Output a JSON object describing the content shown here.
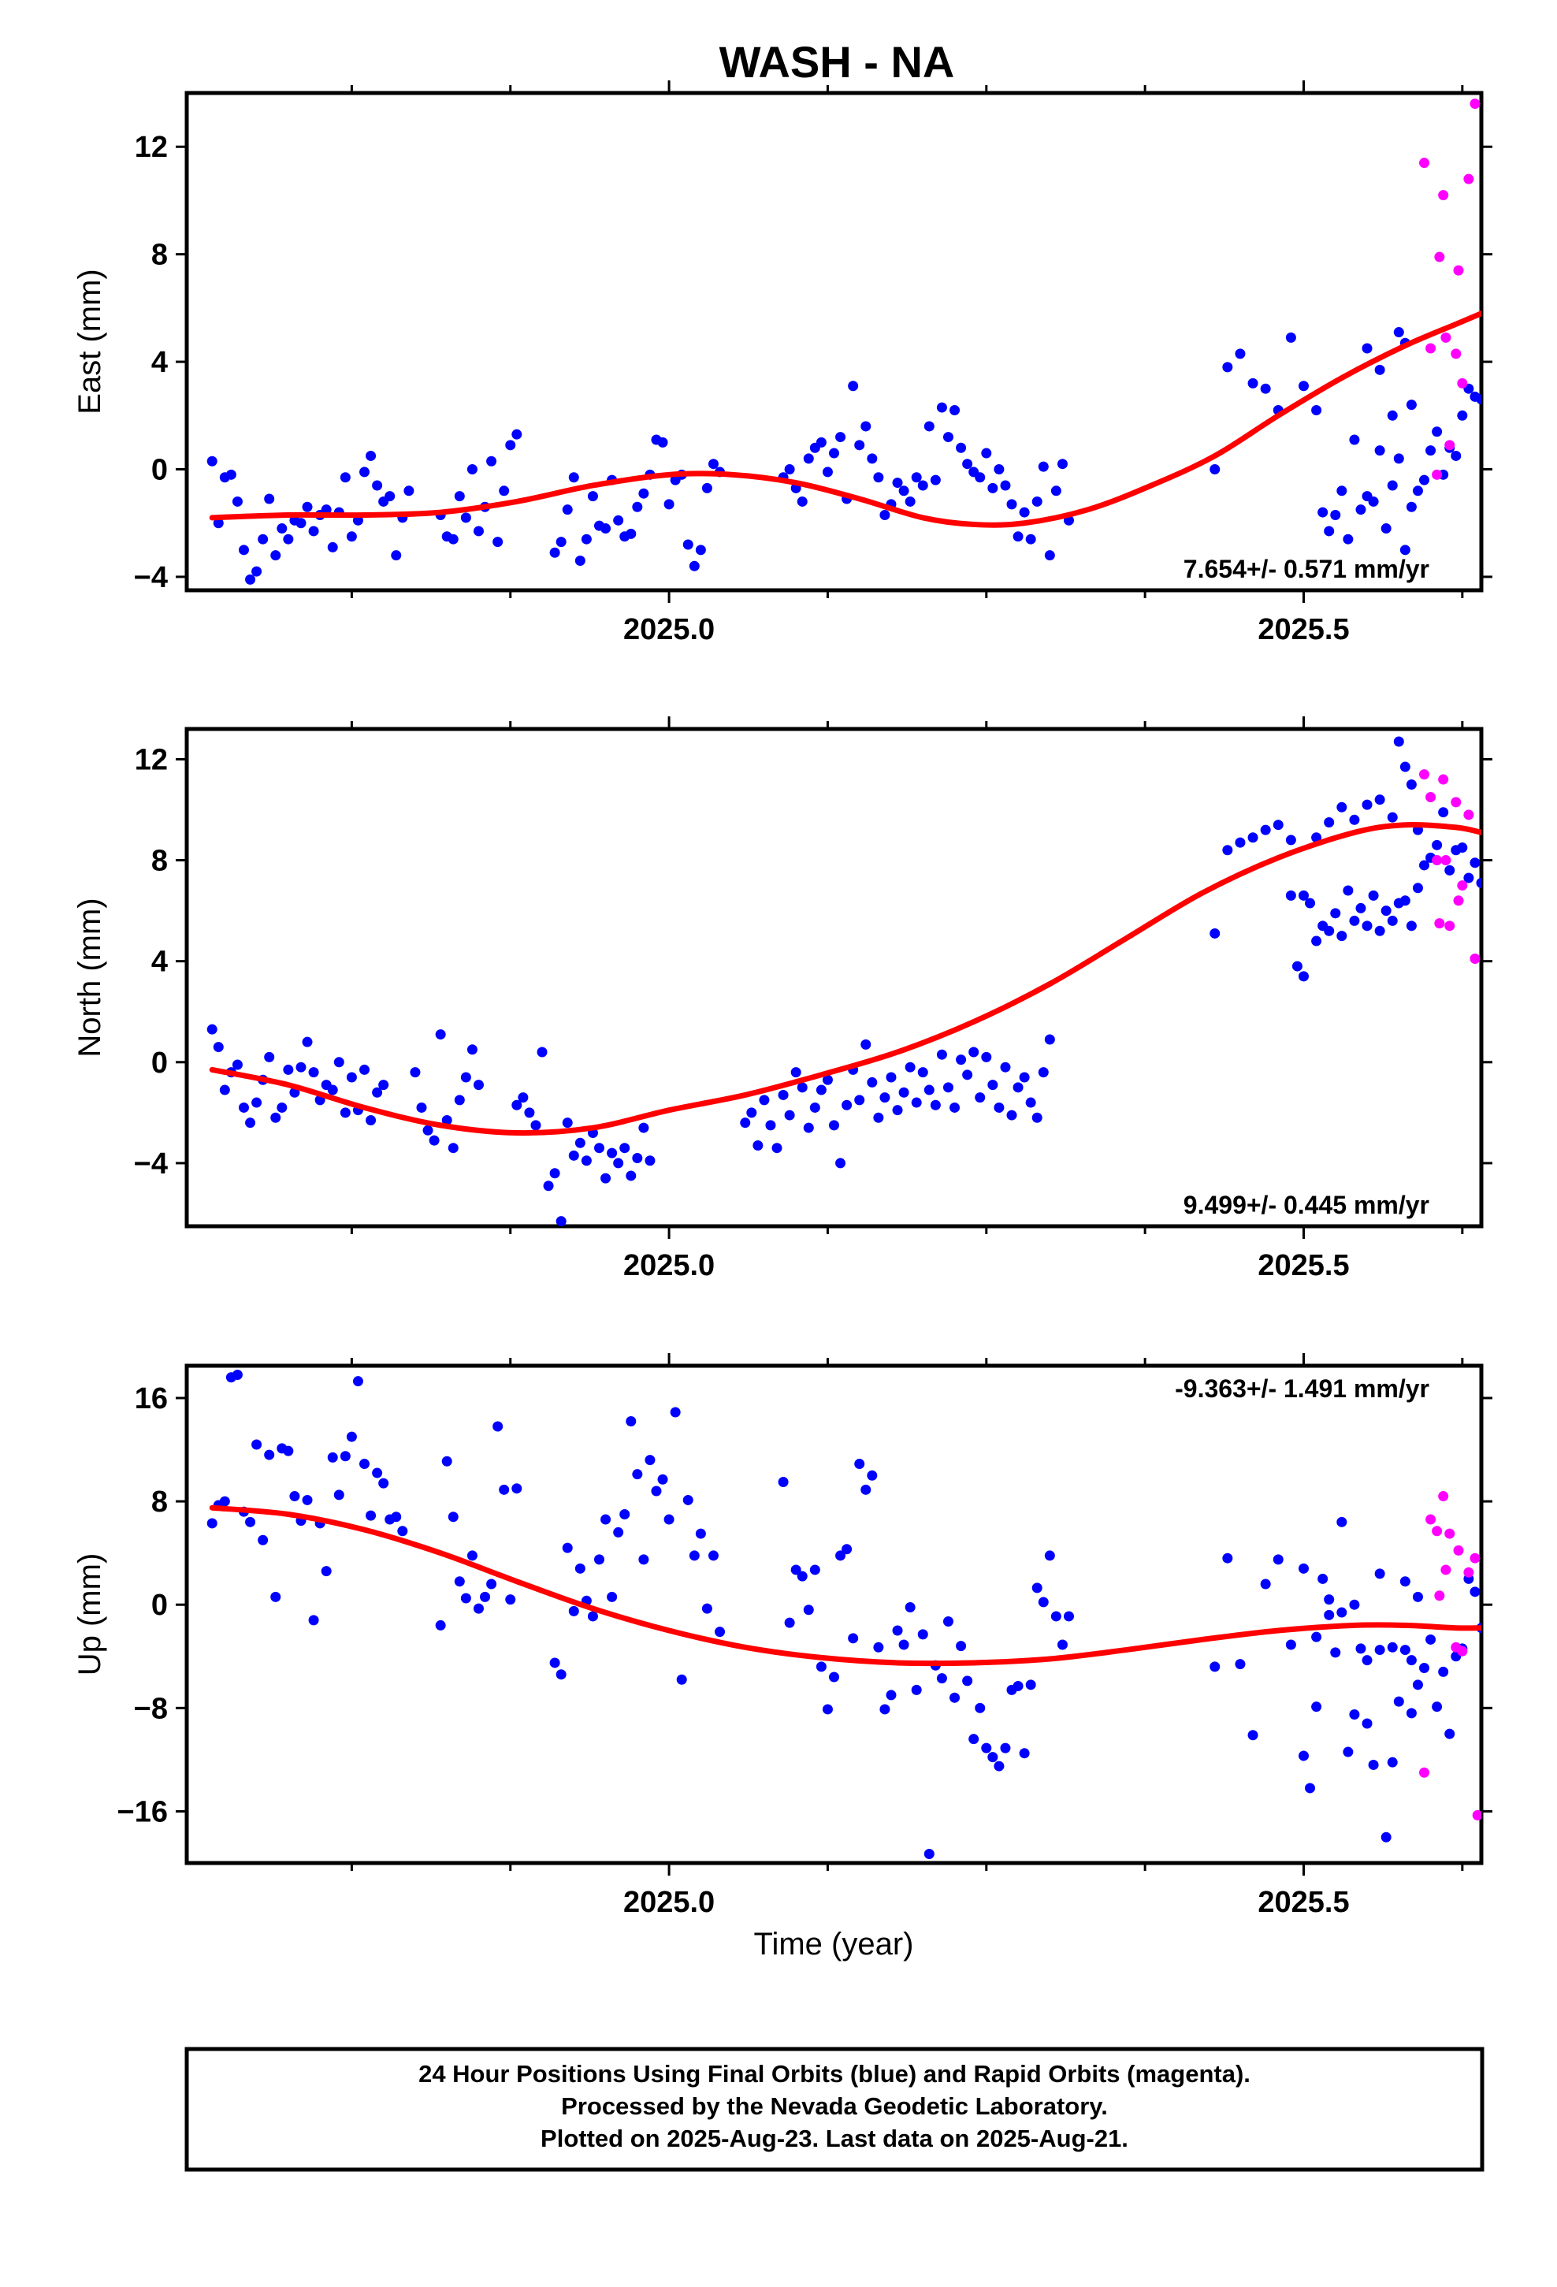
{
  "title": "WASH - NA",
  "x_axis_label": "Time (year)",
  "footer": {
    "line1": "24 Hour Positions Using Final Orbits (blue) and Rapid Orbits (magenta).",
    "line2": "Processed by the Nevada Geodetic Laboratory.",
    "line3": "Plotted on 2025-Aug-23. Last data on 2025-Aug-21."
  },
  "colors": {
    "final": "#0000ff",
    "rapid": "#ff00ff",
    "fit": "#ff0000",
    "axes": "#000000"
  },
  "chart_data": [
    {
      "type": "scatter",
      "ylabel": "East (mm)",
      "xlim": [
        2024.62,
        2025.64
      ],
      "ylim": [
        -4.5,
        14
      ],
      "yticks": [
        -4,
        0,
        4,
        8,
        12
      ],
      "xtick_labels": [
        "2025.0",
        "2025.5"
      ],
      "rate_label": "7.654+/- 0.571 mm/yr",
      "series": [
        {
          "name": "Final Orbits (blue)",
          "points": [
            [
              2024.64,
              0.3
            ],
            [
              2024.645,
              -2.0
            ],
            [
              2024.65,
              -0.3
            ],
            [
              2024.655,
              -0.2
            ],
            [
              2024.66,
              -1.2
            ],
            [
              2024.665,
              -3.0
            ],
            [
              2024.67,
              -4.1
            ],
            [
              2024.675,
              -3.8
            ],
            [
              2024.68,
              -2.6
            ],
            [
              2024.685,
              -1.1
            ],
            [
              2024.69,
              -3.2
            ],
            [
              2024.695,
              -2.2
            ],
            [
              2024.7,
              -2.6
            ],
            [
              2024.705,
              -1.9
            ],
            [
              2024.71,
              -2.0
            ],
            [
              2024.715,
              -1.4
            ],
            [
              2024.72,
              -2.3
            ],
            [
              2024.725,
              -1.7
            ],
            [
              2024.73,
              -1.5
            ],
            [
              2024.735,
              -2.9
            ],
            [
              2024.74,
              -1.6
            ],
            [
              2024.745,
              -0.3
            ],
            [
              2024.75,
              -2.5
            ],
            [
              2024.755,
              -1.9
            ],
            [
              2024.76,
              -0.1
            ],
            [
              2024.765,
              0.5
            ],
            [
              2024.77,
              -0.6
            ],
            [
              2024.775,
              -1.2
            ],
            [
              2024.78,
              -1.0
            ],
            [
              2024.785,
              -3.2
            ],
            [
              2024.79,
              -1.8
            ],
            [
              2024.795,
              -0.8
            ],
            [
              2024.82,
              -1.7
            ],
            [
              2024.825,
              -2.5
            ],
            [
              2024.83,
              -2.6
            ],
            [
              2024.835,
              -1.0
            ],
            [
              2024.84,
              -1.8
            ],
            [
              2024.845,
              0.0
            ],
            [
              2024.85,
              -2.3
            ],
            [
              2024.855,
              -1.4
            ],
            [
              2024.86,
              0.3
            ],
            [
              2024.865,
              -2.7
            ],
            [
              2024.87,
              -0.8
            ],
            [
              2024.875,
              0.9
            ],
            [
              2024.88,
              1.3
            ],
            [
              2024.91,
              -3.1
            ],
            [
              2024.915,
              -2.7
            ],
            [
              2024.92,
              -1.5
            ],
            [
              2024.925,
              -0.3
            ],
            [
              2024.93,
              -3.4
            ],
            [
              2024.935,
              -2.6
            ],
            [
              2024.94,
              -1.0
            ],
            [
              2024.945,
              -2.1
            ],
            [
              2024.95,
              -2.2
            ],
            [
              2024.955,
              -0.4
            ],
            [
              2024.96,
              -1.9
            ],
            [
              2024.965,
              -2.5
            ],
            [
              2024.97,
              -2.4
            ],
            [
              2024.975,
              -1.4
            ],
            [
              2024.98,
              -0.9
            ],
            [
              2024.985,
              -0.2
            ],
            [
              2024.99,
              1.1
            ],
            [
              2024.995,
              1.0
            ],
            [
              2025.0,
              -1.3
            ],
            [
              2025.005,
              -0.4
            ],
            [
              2025.01,
              -0.2
            ],
            [
              2025.015,
              -2.8
            ],
            [
              2025.02,
              -3.6
            ],
            [
              2025.025,
              -3.0
            ],
            [
              2025.03,
              -0.7
            ],
            [
              2025.035,
              0.2
            ],
            [
              2025.04,
              -0.1
            ],
            [
              2025.09,
              -0.3
            ],
            [
              2025.095,
              0.0
            ],
            [
              2025.1,
              -0.7
            ],
            [
              2025.105,
              -1.2
            ],
            [
              2025.11,
              0.4
            ],
            [
              2025.115,
              0.8
            ],
            [
              2025.12,
              1.0
            ],
            [
              2025.125,
              -0.1
            ],
            [
              2025.13,
              0.6
            ],
            [
              2025.135,
              1.2
            ],
            [
              2025.14,
              -1.1
            ],
            [
              2025.145,
              3.1
            ],
            [
              2025.15,
              0.9
            ],
            [
              2025.155,
              1.6
            ],
            [
              2025.16,
              0.4
            ],
            [
              2025.165,
              -0.3
            ],
            [
              2025.17,
              -1.7
            ],
            [
              2025.175,
              -1.3
            ],
            [
              2025.18,
              -0.5
            ],
            [
              2025.185,
              -0.8
            ],
            [
              2025.19,
              -1.2
            ],
            [
              2025.195,
              -0.3
            ],
            [
              2025.2,
              -0.6
            ],
            [
              2025.205,
              1.6
            ],
            [
              2025.21,
              -0.4
            ],
            [
              2025.215,
              2.3
            ],
            [
              2025.22,
              1.2
            ],
            [
              2025.225,
              2.2
            ],
            [
              2025.23,
              0.8
            ],
            [
              2025.235,
              0.2
            ],
            [
              2025.24,
              -0.1
            ],
            [
              2025.245,
              -0.3
            ],
            [
              2025.25,
              0.6
            ],
            [
              2025.255,
              -0.7
            ],
            [
              2025.26,
              0.0
            ],
            [
              2025.265,
              -0.6
            ],
            [
              2025.27,
              -1.3
            ],
            [
              2025.275,
              -2.5
            ],
            [
              2025.28,
              -1.6
            ],
            [
              2025.285,
              -2.6
            ],
            [
              2025.29,
              -1.2
            ],
            [
              2025.295,
              0.1
            ],
            [
              2025.3,
              -3.2
            ],
            [
              2025.305,
              -0.8
            ],
            [
              2025.31,
              0.2
            ],
            [
              2025.315,
              -1.9
            ],
            [
              2025.43,
              0.0
            ],
            [
              2025.51,
              2.2
            ],
            [
              2025.515,
              -1.6
            ],
            [
              2025.52,
              -2.3
            ],
            [
              2025.525,
              -1.7
            ],
            [
              2025.53,
              -0.8
            ],
            [
              2025.535,
              -2.6
            ],
            [
              2025.54,
              1.1
            ],
            [
              2025.545,
              -1.5
            ],
            [
              2025.55,
              -1.0
            ],
            [
              2025.555,
              -1.2
            ],
            [
              2025.56,
              0.7
            ],
            [
              2025.565,
              -2.2
            ],
            [
              2025.57,
              -0.6
            ],
            [
              2025.575,
              0.4
            ],
            [
              2025.58,
              -3.0
            ],
            [
              2025.585,
              -1.4
            ],
            [
              2025.59,
              -0.8
            ],
            [
              2025.595,
              -0.4
            ],
            [
              2025.6,
              0.7
            ],
            [
              2025.605,
              1.4
            ],
            [
              2025.61,
              -0.2
            ],
            [
              2025.615,
              0.8
            ],
            [
              2025.62,
              0.5
            ],
            [
              2025.625,
              2.0
            ],
            [
              2025.63,
              3.0
            ],
            [
              2025.635,
              2.7
            ],
            [
              2025.64,
              2.6
            ]
          ]
        },
        {
          "name": "Rapid Orbits (magenta)",
          "points": []
        }
      ]
    },
    {
      "type": "scatter",
      "ylabel": "North (mm)",
      "xlim": [
        2024.62,
        2025.64
      ],
      "ylim": [
        -6.5,
        13.2
      ],
      "yticks": [
        -4,
        0,
        4,
        8,
        12
      ],
      "xtick_labels": [
        "2025.0",
        "2025.5"
      ],
      "rate_label": "9.499+/- 0.445 mm/yr",
      "series": [
        {
          "name": "Final Orbits (blue)",
          "points": []
        },
        {
          "name": "Rapid Orbits (magenta)",
          "points": []
        }
      ]
    },
    {
      "type": "scatter",
      "ylabel": "Up (mm)",
      "xlim": [
        2024.62,
        2025.64
      ],
      "ylim": [
        -20,
        18.5
      ],
      "yticks": [
        -16,
        -8,
        0,
        8,
        16
      ],
      "xtick_labels": [
        "2025.0",
        "2025.5"
      ],
      "rate_label": "-9.363+/- 1.491 mm/yr",
      "series": [
        {
          "name": "Final Orbits (blue)",
          "points": []
        },
        {
          "name": "Rapid Orbits (magenta)",
          "points": []
        }
      ]
    }
  ]
}
